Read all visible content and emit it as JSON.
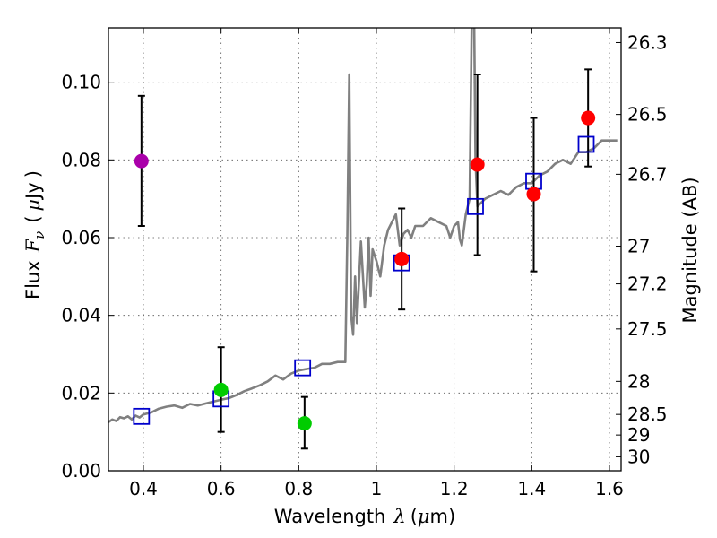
{
  "chart_data": {
    "type": "scatter",
    "xlabel_parts": [
      "Wavelength",
      "λ",
      "(",
      "μ",
      "m)"
    ],
    "ylabel_parts": [
      "Flux",
      "F",
      "ν",
      "(",
      "μ",
      "Jy",
      ")"
    ],
    "y2label": "Magnitude (AB)",
    "xlim": [
      0.31,
      1.63
    ],
    "ylim": [
      0.0,
      0.114
    ],
    "x_ticks": [
      0.4,
      0.6,
      0.8,
      1.0,
      1.2,
      1.4,
      1.6
    ],
    "x_tick_labels": [
      "0.4",
      "0.6",
      "0.8",
      "1",
      "1.2",
      "1.4",
      "1.6"
    ],
    "y_ticks": [
      0.0,
      0.02,
      0.04,
      0.06,
      0.08,
      0.1
    ],
    "y_tick_labels": [
      "0.00",
      "0.02",
      "0.04",
      "0.06",
      "0.08",
      "0.10"
    ],
    "magnitude_ticks": [
      {
        "label": "26.3",
        "flux": 0.1102
      },
      {
        "label": "26.5",
        "flux": 0.0917
      },
      {
        "label": "26.7",
        "flux": 0.0763
      },
      {
        "label": "27",
        "flux": 0.0578
      },
      {
        "label": "27.2",
        "flux": 0.0481
      },
      {
        "label": "27.5",
        "flux": 0.0365
      },
      {
        "label": "28",
        "flux": 0.023
      },
      {
        "label": "28.5",
        "flux": 0.0145
      },
      {
        "label": "29",
        "flux": 0.0092
      },
      {
        "label": "30",
        "flux": 0.0036
      }
    ],
    "series": [
      {
        "name": "model-spectrum",
        "kind": "line",
        "color": "#808080",
        "x": [
          0.31,
          0.32,
          0.33,
          0.34,
          0.35,
          0.36,
          0.37,
          0.38,
          0.39,
          0.4,
          0.42,
          0.44,
          0.46,
          0.48,
          0.5,
          0.52,
          0.54,
          0.56,
          0.58,
          0.6,
          0.62,
          0.64,
          0.66,
          0.68,
          0.7,
          0.72,
          0.74,
          0.76,
          0.78,
          0.8,
          0.82,
          0.84,
          0.86,
          0.88,
          0.9,
          0.92,
          0.925,
          0.93,
          0.935,
          0.94,
          0.945,
          0.95,
          0.96,
          0.97,
          0.975,
          0.98,
          0.985,
          0.99,
          1.0,
          1.01,
          1.02,
          1.03,
          1.04,
          1.05,
          1.06,
          1.07,
          1.08,
          1.09,
          1.1,
          1.12,
          1.14,
          1.16,
          1.18,
          1.19,
          1.2,
          1.21,
          1.215,
          1.22,
          1.23,
          1.24,
          1.245,
          1.25,
          1.255,
          1.26,
          1.27,
          1.28,
          1.3,
          1.32,
          1.34,
          1.36,
          1.38,
          1.4,
          1.42,
          1.44,
          1.46,
          1.48,
          1.5,
          1.52,
          1.54,
          1.56,
          1.58,
          1.6,
          1.62
        ],
        "y": [
          0.0125,
          0.0132,
          0.0128,
          0.0138,
          0.0135,
          0.014,
          0.0132,
          0.0142,
          0.0137,
          0.0145,
          0.015,
          0.016,
          0.0165,
          0.0168,
          0.0162,
          0.0172,
          0.0168,
          0.0173,
          0.0178,
          0.0183,
          0.0187,
          0.0195,
          0.0205,
          0.0212,
          0.022,
          0.023,
          0.0245,
          0.0235,
          0.025,
          0.0258,
          0.0262,
          0.0265,
          0.0275,
          0.0275,
          0.028,
          0.028,
          0.06,
          0.102,
          0.04,
          0.035,
          0.05,
          0.038,
          0.059,
          0.042,
          0.048,
          0.06,
          0.045,
          0.057,
          0.054,
          0.05,
          0.058,
          0.062,
          0.064,
          0.066,
          0.058,
          0.061,
          0.062,
          0.06,
          0.063,
          0.063,
          0.065,
          0.064,
          0.063,
          0.06,
          0.063,
          0.064,
          0.0595,
          0.058,
          0.066,
          0.07,
          0.113,
          0.135,
          0.08,
          0.068,
          0.069,
          0.07,
          0.071,
          0.072,
          0.071,
          0.073,
          0.074,
          0.074,
          0.076,
          0.077,
          0.079,
          0.08,
          0.079,
          0.082,
          0.082,
          0.083,
          0.085,
          0.085,
          0.085
        ]
      },
      {
        "name": "model-band-flux",
        "kind": "square",
        "color": "#0000cc",
        "x": [
          0.395,
          0.6,
          0.81,
          1.065,
          1.255,
          1.405,
          1.54
        ],
        "y": [
          0.014,
          0.0185,
          0.0265,
          0.0535,
          0.068,
          0.0745,
          0.084
        ]
      },
      {
        "name": "observed",
        "kind": "point-errorbar",
        "points": [
          {
            "x": 0.395,
            "y": 0.0797,
            "ylo": 0.063,
            "yhi": 0.0965,
            "color": "#aa00aa"
          },
          {
            "x": 0.6,
            "y": 0.0208,
            "ylo": 0.01,
            "yhi": 0.0318,
            "color": "#00cc00"
          },
          {
            "x": 0.815,
            "y": 0.0122,
            "ylo": 0.0057,
            "yhi": 0.019,
            "color": "#00cc00"
          },
          {
            "x": 1.065,
            "y": 0.0545,
            "ylo": 0.0415,
            "yhi": 0.0675,
            "color": "#ff0000"
          },
          {
            "x": 1.26,
            "y": 0.0788,
            "ylo": 0.0555,
            "yhi": 0.102,
            "color": "#ff0000"
          },
          {
            "x": 1.405,
            "y": 0.0712,
            "ylo": 0.0513,
            "yhi": 0.0908,
            "color": "#ff0000"
          },
          {
            "x": 1.545,
            "y": 0.0908,
            "ylo": 0.0783,
            "yhi": 0.1033,
            "color": "#ff0000"
          }
        ]
      }
    ]
  }
}
